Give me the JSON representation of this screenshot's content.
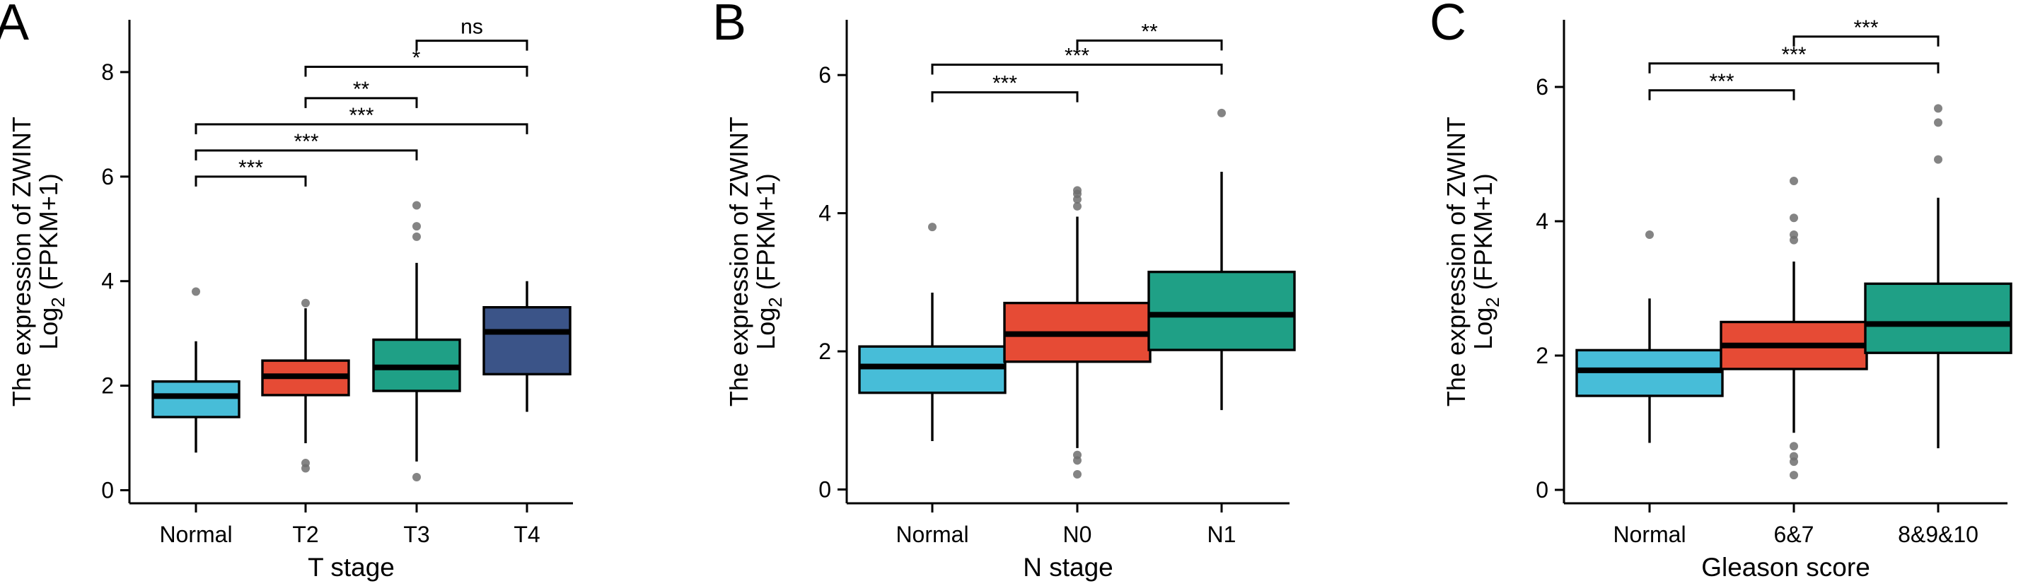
{
  "figure": {
    "panels": [
      "A",
      "B",
      "C"
    ]
  },
  "colors": {
    "Normal": "#47BDD8",
    "T2": "#E64B35",
    "T3": "#1FA086",
    "T4": "#3B5488",
    "N0": "#E64B35",
    "N1": "#1FA086",
    "6&7": "#E64B35",
    "8&9&10": "#1FA086",
    "outlier": "#6f6f6f"
  },
  "chart_data": [
    {
      "type": "box",
      "panel_label": "A",
      "ylabel_line1": "The expression of ZWINT",
      "ylabel_line2_prefix": "Log",
      "ylabel_line2_sub": "2",
      "ylabel_line2_suffix": " (FPKM+1)",
      "xlabel": "T stage",
      "ylim": [
        -0.25,
        9.0
      ],
      "yticks": [
        0,
        2,
        4,
        6,
        8
      ],
      "categories": [
        "Normal",
        "T2",
        "T3",
        "T4"
      ],
      "boxes": [
        {
          "category": "Normal",
          "min": 0.72,
          "q1": 1.4,
          "median": 1.8,
          "q3": 2.08,
          "max": 2.85,
          "outliers": [
            3.8
          ]
        },
        {
          "category": "T2",
          "min": 0.9,
          "q1": 1.82,
          "median": 2.18,
          "q3": 2.48,
          "max": 3.48,
          "outliers": [
            3.58,
            0.52,
            0.42
          ]
        },
        {
          "category": "T3",
          "min": 0.55,
          "q1": 1.9,
          "median": 2.35,
          "q3": 2.88,
          "max": 4.35,
          "outliers": [
            0.25,
            4.85,
            5.05,
            5.45
          ]
        },
        {
          "category": "T4",
          "min": 1.5,
          "q1": 2.22,
          "median": 3.03,
          "q3": 3.5,
          "max": 4.0,
          "outliers": []
        }
      ],
      "significance": [
        {
          "from": "Normal",
          "to": "T2",
          "y": 6.0,
          "label": "***"
        },
        {
          "from": "Normal",
          "to": "T3",
          "y": 6.5,
          "label": "***"
        },
        {
          "from": "Normal",
          "to": "T4",
          "y": 7.0,
          "label": "***"
        },
        {
          "from": "T2",
          "to": "T3",
          "y": 7.5,
          "label": "**"
        },
        {
          "from": "T2",
          "to": "T4",
          "y": 8.1,
          "label": "*"
        },
        {
          "from": "T3",
          "to": "T4",
          "y": 8.6,
          "label": "ns"
        }
      ]
    },
    {
      "type": "box",
      "panel_label": "B",
      "ylabel_line1": "The expression of ZWINT",
      "ylabel_line2_prefix": "Log",
      "ylabel_line2_sub": "2",
      "ylabel_line2_suffix": " (FPKM+1)",
      "xlabel": "N stage",
      "ylim": [
        -0.2,
        6.8
      ],
      "yticks": [
        0,
        2,
        4,
        6
      ],
      "categories": [
        "Normal",
        "N0",
        "N1"
      ],
      "boxes": [
        {
          "category": "Normal",
          "min": 0.7,
          "q1": 1.4,
          "median": 1.78,
          "q3": 2.07,
          "max": 2.85,
          "outliers": [
            3.8
          ]
        },
        {
          "category": "N0",
          "min": 0.6,
          "q1": 1.85,
          "median": 2.25,
          "q3": 2.7,
          "max": 3.95,
          "outliers": [
            4.1,
            4.2,
            4.28,
            4.33,
            0.5,
            0.42,
            0.22
          ]
        },
        {
          "category": "N1",
          "min": 1.15,
          "q1": 2.02,
          "median": 2.53,
          "q3": 3.15,
          "max": 4.6,
          "outliers": [
            5.45
          ]
        }
      ],
      "significance": [
        {
          "from": "Normal",
          "to": "N0",
          "y": 5.75,
          "label": "***"
        },
        {
          "from": "Normal",
          "to": "N1",
          "y": 6.15,
          "label": "***"
        },
        {
          "from": "N0",
          "to": "N1",
          "y": 6.5,
          "label": "**"
        }
      ]
    },
    {
      "type": "box",
      "panel_label": "C",
      "ylabel_line1": "The expression of ZWINT",
      "ylabel_line2_prefix": "Log",
      "ylabel_line2_sub": "2",
      "ylabel_line2_suffix": " (FPKM+1)",
      "xlabel": "Gleason score",
      "ylim": [
        -0.2,
        7.0
      ],
      "yticks": [
        0,
        2,
        4,
        6
      ],
      "categories": [
        "Normal",
        "6&7",
        "8&9&10"
      ],
      "boxes": [
        {
          "category": "Normal",
          "min": 0.7,
          "q1": 1.4,
          "median": 1.78,
          "q3": 2.08,
          "max": 2.85,
          "outliers": [
            3.8
          ]
        },
        {
          "category": "6&7",
          "min": 0.85,
          "q1": 1.8,
          "median": 2.15,
          "q3": 2.5,
          "max": 3.4,
          "outliers": [
            3.72,
            3.8,
            4.05,
            4.6,
            0.65,
            0.5,
            0.42,
            0.22
          ]
        },
        {
          "category": "8&9&10",
          "min": 0.62,
          "q1": 2.04,
          "median": 2.47,
          "q3": 3.07,
          "max": 4.35,
          "outliers": [
            4.92,
            5.47,
            5.68
          ]
        }
      ],
      "significance": [
        {
          "from": "Normal",
          "to": "6&7",
          "y": 5.95,
          "label": "***"
        },
        {
          "from": "Normal",
          "to": "8&9&10",
          "y": 6.35,
          "label": "***"
        },
        {
          "from": "6&7",
          "to": "8&9&10",
          "y": 6.75,
          "label": "***"
        }
      ]
    }
  ]
}
